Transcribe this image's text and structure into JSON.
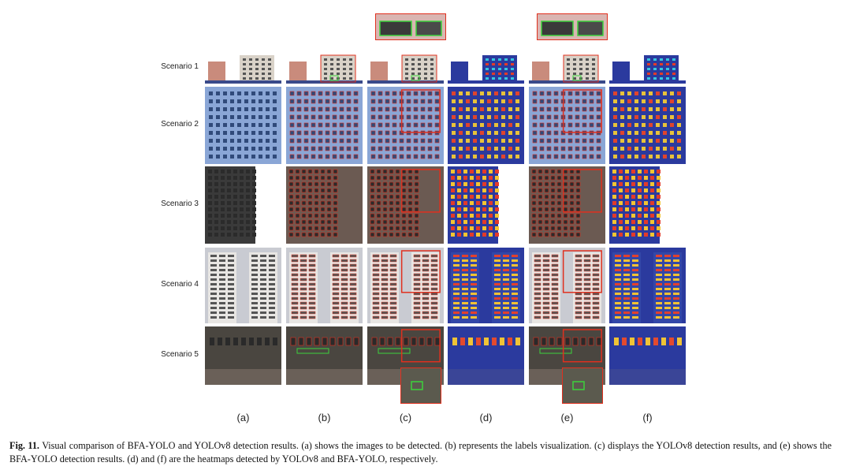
{
  "figure": {
    "rows": [
      {
        "label": "Scenario 1"
      },
      {
        "label": "Scenario 2"
      },
      {
        "label": "Scenario 3"
      },
      {
        "label": "Scenario 4"
      },
      {
        "label": "Scenario 5"
      }
    ],
    "columns": [
      {
        "label": "(a)",
        "kind": "original"
      },
      {
        "label": "(b)",
        "kind": "labels"
      },
      {
        "label": "(c)",
        "kind": "detection"
      },
      {
        "label": "(d)",
        "kind": "heatmap"
      },
      {
        "label": "(e)",
        "kind": "detection"
      },
      {
        "label": "(f)",
        "kind": "heatmap"
      }
    ]
  },
  "caption": {
    "label": "Fig. 11.",
    "text": "Visual comparison of BFA-YOLO and YOLOv8 detection results. (a) shows the images to be detected. (b) represents the labels visualization. (c) displays the YOLOv8 detection results, and (e) shows the BFA-YOLO detection results. (d) and (f) are the heatmaps detected by YOLOv8 and BFA-YOLO, respectively."
  },
  "colors": {
    "detection_box": "#e0301e",
    "heatmap_base": "#2b3a9e",
    "facade_blue": "#6f8fc9",
    "green_box": "#3cd23c"
  }
}
